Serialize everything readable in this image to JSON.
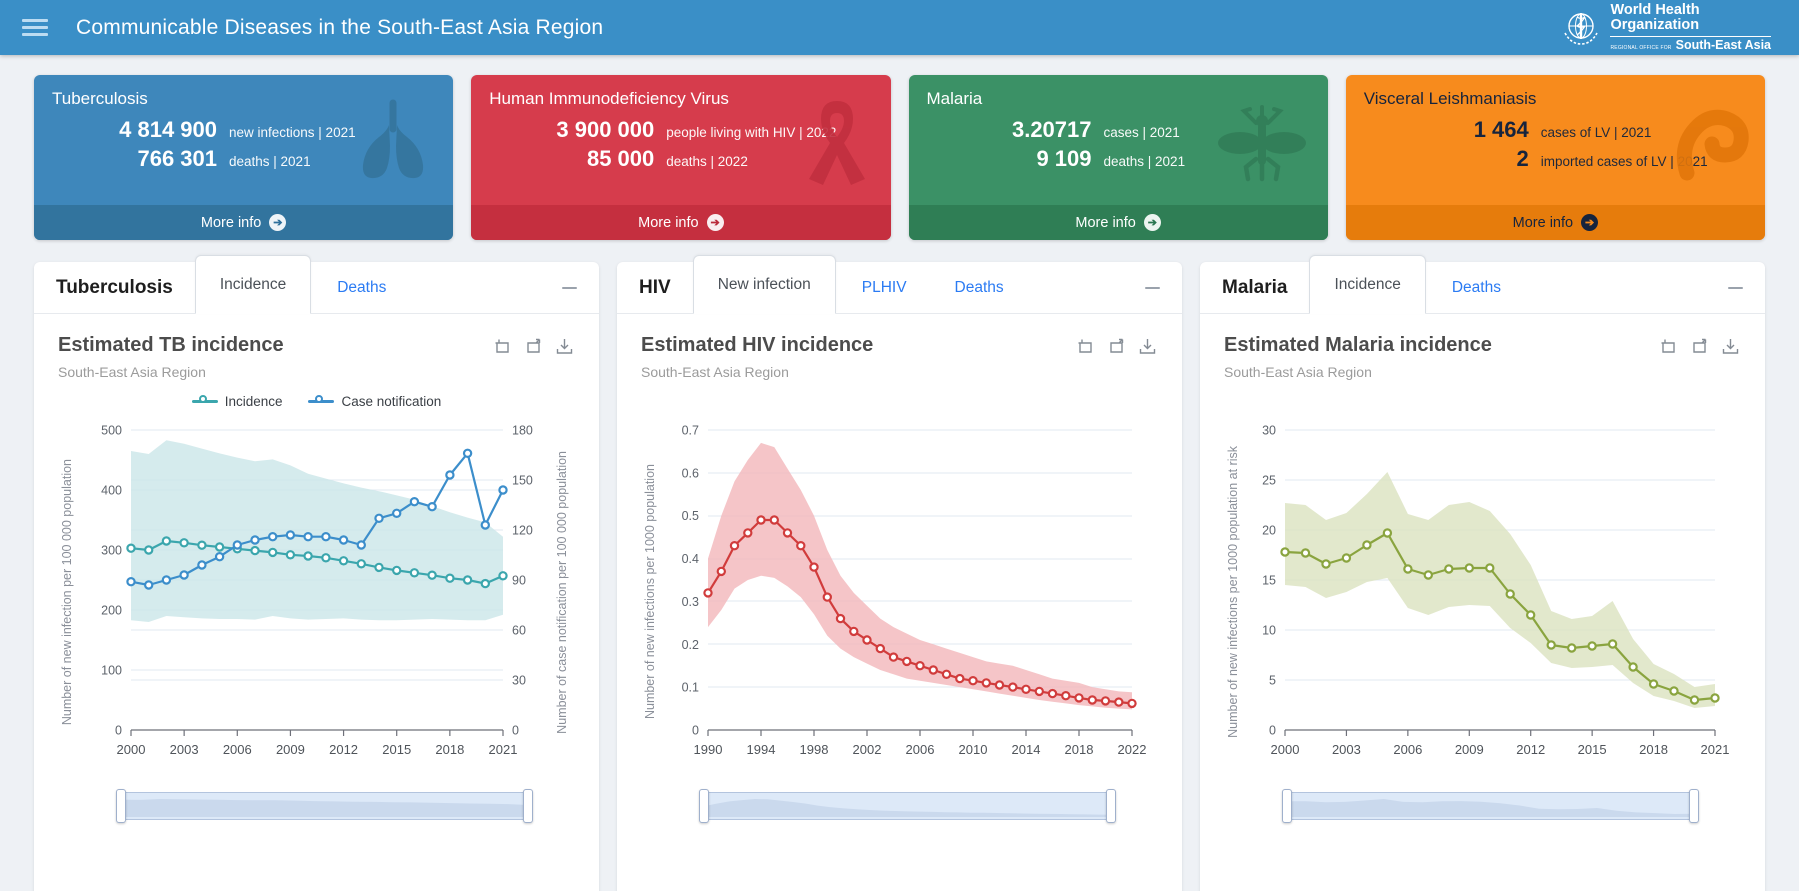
{
  "header": {
    "title": "Communicable Diseases in the South-East Asia Region",
    "logo": {
      "line1": "World Health",
      "line2": "Organization",
      "line3": "REGIONAL OFFICE FOR",
      "line4": "South-East Asia"
    }
  },
  "cards": [
    {
      "title": "Tuberculosis",
      "icon": "lungs",
      "colors": {
        "bg": "#3e87bb",
        "footer": "#32749e",
        "text": "#ffffff",
        "icon": "#35759d",
        "circle_bg": "#eef4f8",
        "circle_fg": "#2d6f9b"
      },
      "stats": [
        {
          "value": "4 814 900",
          "label": "new infections | 2021"
        },
        {
          "value": "766 301",
          "label": "deaths | 2021"
        }
      ],
      "more_label": "More info"
    },
    {
      "title": "Human Immunodeficiency Virus",
      "icon": "ribbon",
      "colors": {
        "bg": "#d63c4c",
        "footer": "#c52f3f",
        "text": "#ffffff",
        "icon": "#c22f3f",
        "circle_bg": "#f9eef0",
        "circle_fg": "#b92b3b"
      },
      "stats": [
        {
          "value": "3 900 000",
          "label": "people living with HIV | 2022"
        },
        {
          "value": "85 000",
          "label": "deaths | 2022"
        }
      ],
      "more_label": "More info"
    },
    {
      "title": "Malaria",
      "icon": "mosquito",
      "colors": {
        "bg": "#3b9166",
        "footer": "#2f7e55",
        "text": "#ffffff",
        "icon": "#327e58",
        "circle_bg": "#ecf5f0",
        "circle_fg": "#2a7650"
      },
      "stats": [
        {
          "value": "3.20717",
          "label": "cases | 2021"
        },
        {
          "value": "9 109",
          "label": "deaths | 2021"
        }
      ],
      "more_label": "More info"
    },
    {
      "title": "Visceral Leishmaniasis",
      "icon": "parasite",
      "colors": {
        "bg": "#f78b1d",
        "footer": "#e67c0c",
        "text": "#16243d",
        "icon": "#e3770b",
        "circle_bg": "#16243d",
        "circle_fg": "#f78b1d"
      },
      "stats": [
        {
          "value": "1 464",
          "label": "cases of LV | 2021"
        },
        {
          "value": "2",
          "label": "imported cases of LV | 2021"
        }
      ],
      "more_label": "More info"
    }
  ],
  "panels": [
    {
      "name": "Tuberculosis",
      "tabs": [
        {
          "label": "Incidence",
          "active": true
        },
        {
          "label": "Deaths",
          "active": false
        }
      ]
    },
    {
      "name": "HIV",
      "tabs": [
        {
          "label": "New infection",
          "active": true
        },
        {
          "label": "PLHIV",
          "active": false
        },
        {
          "label": "Deaths",
          "active": false
        }
      ]
    },
    {
      "name": "Malaria",
      "tabs": [
        {
          "label": "Incidence",
          "active": true
        },
        {
          "label": "Deaths",
          "active": false
        }
      ]
    }
  ],
  "chart_data": [
    {
      "id": "tb",
      "type": "line",
      "title": "Estimated TB incidence",
      "subtitle": "South-East Asia Region",
      "x": [
        "2000",
        "2001",
        "2002",
        "2003",
        "2004",
        "2005",
        "2006",
        "2007",
        "2008",
        "2009",
        "2010",
        "2011",
        "2012",
        "2013",
        "2014",
        "2015",
        "2016",
        "2017",
        "2018",
        "2019",
        "2020",
        "2021"
      ],
      "x_tick_labels": [
        "2000",
        "2003",
        "2006",
        "2009",
        "2012",
        "2015",
        "2018",
        "2021"
      ],
      "ylabel_left": "Number of new infection per 100 000 population",
      "ylabel_right": "Number of case notification per 100 000 population",
      "y_left": {
        "min": 0,
        "max": 500,
        "step": 100
      },
      "y_right": {
        "min": 0,
        "max": 180,
        "step": 30
      },
      "legend_position": "top",
      "grid": true,
      "series": [
        {
          "name": "Incidence",
          "axis": "left",
          "color": "#3ba6ad",
          "values": [
            303,
            300,
            315,
            312,
            308,
            305,
            302,
            299,
            296,
            292,
            290,
            287,
            282,
            277,
            271,
            266,
            262,
            258,
            253,
            250,
            244,
            257
          ],
          "band": {
            "fill": "#cbe6e9",
            "upper": [
              465,
              460,
              483,
              477,
              469,
              461,
              454,
              448,
              451,
              441,
              427,
              419,
              411,
              404,
              398,
              391,
              384,
              373,
              363,
              354,
              346,
              322
            ],
            "lower": [
              183,
              180,
              190,
              188,
              186,
              185,
              185,
              184,
              190,
              186,
              184,
              185,
              186,
              184,
              183,
              183,
              184,
              185,
              184,
              183,
              183,
              192
            ]
          }
        },
        {
          "name": "Case notification",
          "axis": "right",
          "color": "#3c8ecb",
          "values": [
            89,
            87,
            90,
            93,
            99,
            104,
            111,
            114,
            116,
            117,
            116,
            116,
            114,
            111,
            127,
            130,
            137,
            134,
            153,
            166,
            123,
            144
          ]
        }
      ]
    },
    {
      "id": "hiv",
      "type": "line",
      "title": "Estimated HIV incidence",
      "subtitle": "South-East Asia Region",
      "x": [
        "1990",
        "1991",
        "1992",
        "1993",
        "1994",
        "1995",
        "1996",
        "1997",
        "1998",
        "1999",
        "2000",
        "2001",
        "2002",
        "2003",
        "2004",
        "2005",
        "2006",
        "2007",
        "2008",
        "2009",
        "2010",
        "2011",
        "2012",
        "2013",
        "2014",
        "2015",
        "2016",
        "2017",
        "2018",
        "2019",
        "2020",
        "2021",
        "2022"
      ],
      "x_tick_labels": [
        "1990",
        "1994",
        "1998",
        "2002",
        "2006",
        "2010",
        "2014",
        "2018",
        "2022"
      ],
      "ylabel_left": "Number of new infections per 1000 population",
      "y_left": {
        "min": 0,
        "max": 0.7,
        "step": 0.1
      },
      "grid": true,
      "series": [
        {
          "name": "New infections",
          "axis": "left",
          "color": "#d13c3c",
          "values": [
            0.32,
            0.37,
            0.43,
            0.46,
            0.49,
            0.49,
            0.46,
            0.43,
            0.38,
            0.31,
            0.26,
            0.23,
            0.21,
            0.19,
            0.17,
            0.16,
            0.15,
            0.14,
            0.13,
            0.12,
            0.115,
            0.11,
            0.105,
            0.1,
            0.095,
            0.09,
            0.085,
            0.08,
            0.075,
            0.07,
            0.068,
            0.065,
            0.062
          ],
          "band": {
            "fill": "#f3b7ba",
            "upper": [
              0.4,
              0.5,
              0.58,
              0.63,
              0.67,
              0.66,
              0.61,
              0.56,
              0.5,
              0.42,
              0.36,
              0.32,
              0.29,
              0.26,
              0.24,
              0.225,
              0.21,
              0.2,
              0.19,
              0.18,
              0.17,
              0.16,
              0.155,
              0.15,
              0.14,
              0.13,
              0.12,
              0.115,
              0.11,
              0.1,
              0.095,
              0.09,
              0.088
            ],
            "lower": [
              0.24,
              0.28,
              0.33,
              0.35,
              0.36,
              0.355,
              0.335,
              0.31,
              0.27,
              0.22,
              0.19,
              0.17,
              0.155,
              0.14,
              0.13,
              0.12,
              0.115,
              0.11,
              0.105,
              0.1,
              0.095,
              0.09,
              0.085,
              0.08,
              0.075,
              0.07,
              0.066,
              0.062,
              0.058,
              0.055,
              0.052,
              0.05,
              0.048
            ]
          }
        }
      ]
    },
    {
      "id": "malaria",
      "type": "line",
      "title": "Estimated Malaria incidence",
      "subtitle": "South-East Asia Region",
      "x": [
        "2000",
        "2001",
        "2002",
        "2003",
        "2004",
        "2005",
        "2006",
        "2007",
        "2008",
        "2009",
        "2010",
        "2011",
        "2012",
        "2013",
        "2014",
        "2015",
        "2016",
        "2017",
        "2018",
        "2019",
        "2020",
        "2021"
      ],
      "x_tick_labels": [
        "2000",
        "2003",
        "2006",
        "2009",
        "2012",
        "2015",
        "2018",
        "2021"
      ],
      "ylabel_left": "Number of new infections per 1000 population at risk",
      "y_left": {
        "min": 0,
        "max": 30,
        "step": 5
      },
      "grid": true,
      "series": [
        {
          "name": "Incidence",
          "axis": "left",
          "color": "#8aa43f",
          "values": [
            17.8,
            17.7,
            16.6,
            17.2,
            18.5,
            19.7,
            16.1,
            15.5,
            16.1,
            16.2,
            16.2,
            13.6,
            11.5,
            8.5,
            8.2,
            8.4,
            8.6,
            6.3,
            4.6,
            3.9,
            3.0,
            3.2
          ],
          "band": {
            "fill": "#dbe2bf",
            "upper": [
              22.7,
              22.5,
              21.0,
              21.7,
              23.6,
              25.8,
              21.6,
              21.0,
              22.5,
              22.8,
              21.9,
              19.6,
              16.5,
              11.9,
              11.1,
              11.4,
              12.9,
              9.1,
              6.6,
              5.6,
              4.3,
              4.6
            ],
            "lower": [
              14.5,
              14.3,
              13.2,
              13.8,
              14.8,
              15.2,
              12.2,
              11.5,
              12.3,
              12.5,
              12.4,
              10.2,
              8.7,
              6.7,
              6.2,
              6.3,
              6.5,
              4.7,
              3.4,
              2.9,
              2.2,
              2.4
            ]
          }
        }
      ]
    }
  ],
  "colors": {
    "header_bg": "#3a8fc7",
    "page_bg": "#eef1f5",
    "tab_link": "#2b7bf3",
    "grid_line": "#e2e8f2",
    "axis_line": "#6e7079"
  }
}
